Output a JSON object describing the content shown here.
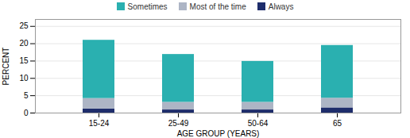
{
  "chart_data": {
    "type": "bar",
    "stacked": true,
    "xlabel": "AGE GROUP (YEARS)",
    "ylabel": "PERCENT",
    "categories": [
      "15-24",
      "25-49",
      "50-64",
      "65"
    ],
    "series": [
      {
        "name": "Always",
        "color": "#1e2d6b",
        "values": [
          1.2,
          0.9,
          0.9,
          1.5
        ]
      },
      {
        "name": "Most of the time",
        "color": "#adb5c5",
        "values": [
          3.0,
          2.2,
          2.2,
          2.8
        ]
      },
      {
        "name": "Sometimes",
        "color": "#2ab0b0",
        "values": [
          16.8,
          13.8,
          11.8,
          15.2
        ]
      }
    ],
    "ylim": [
      0,
      27
    ],
    "yticks": [
      0,
      5,
      10,
      15,
      20,
      25
    ],
    "grid": true,
    "legend": "upper center"
  }
}
